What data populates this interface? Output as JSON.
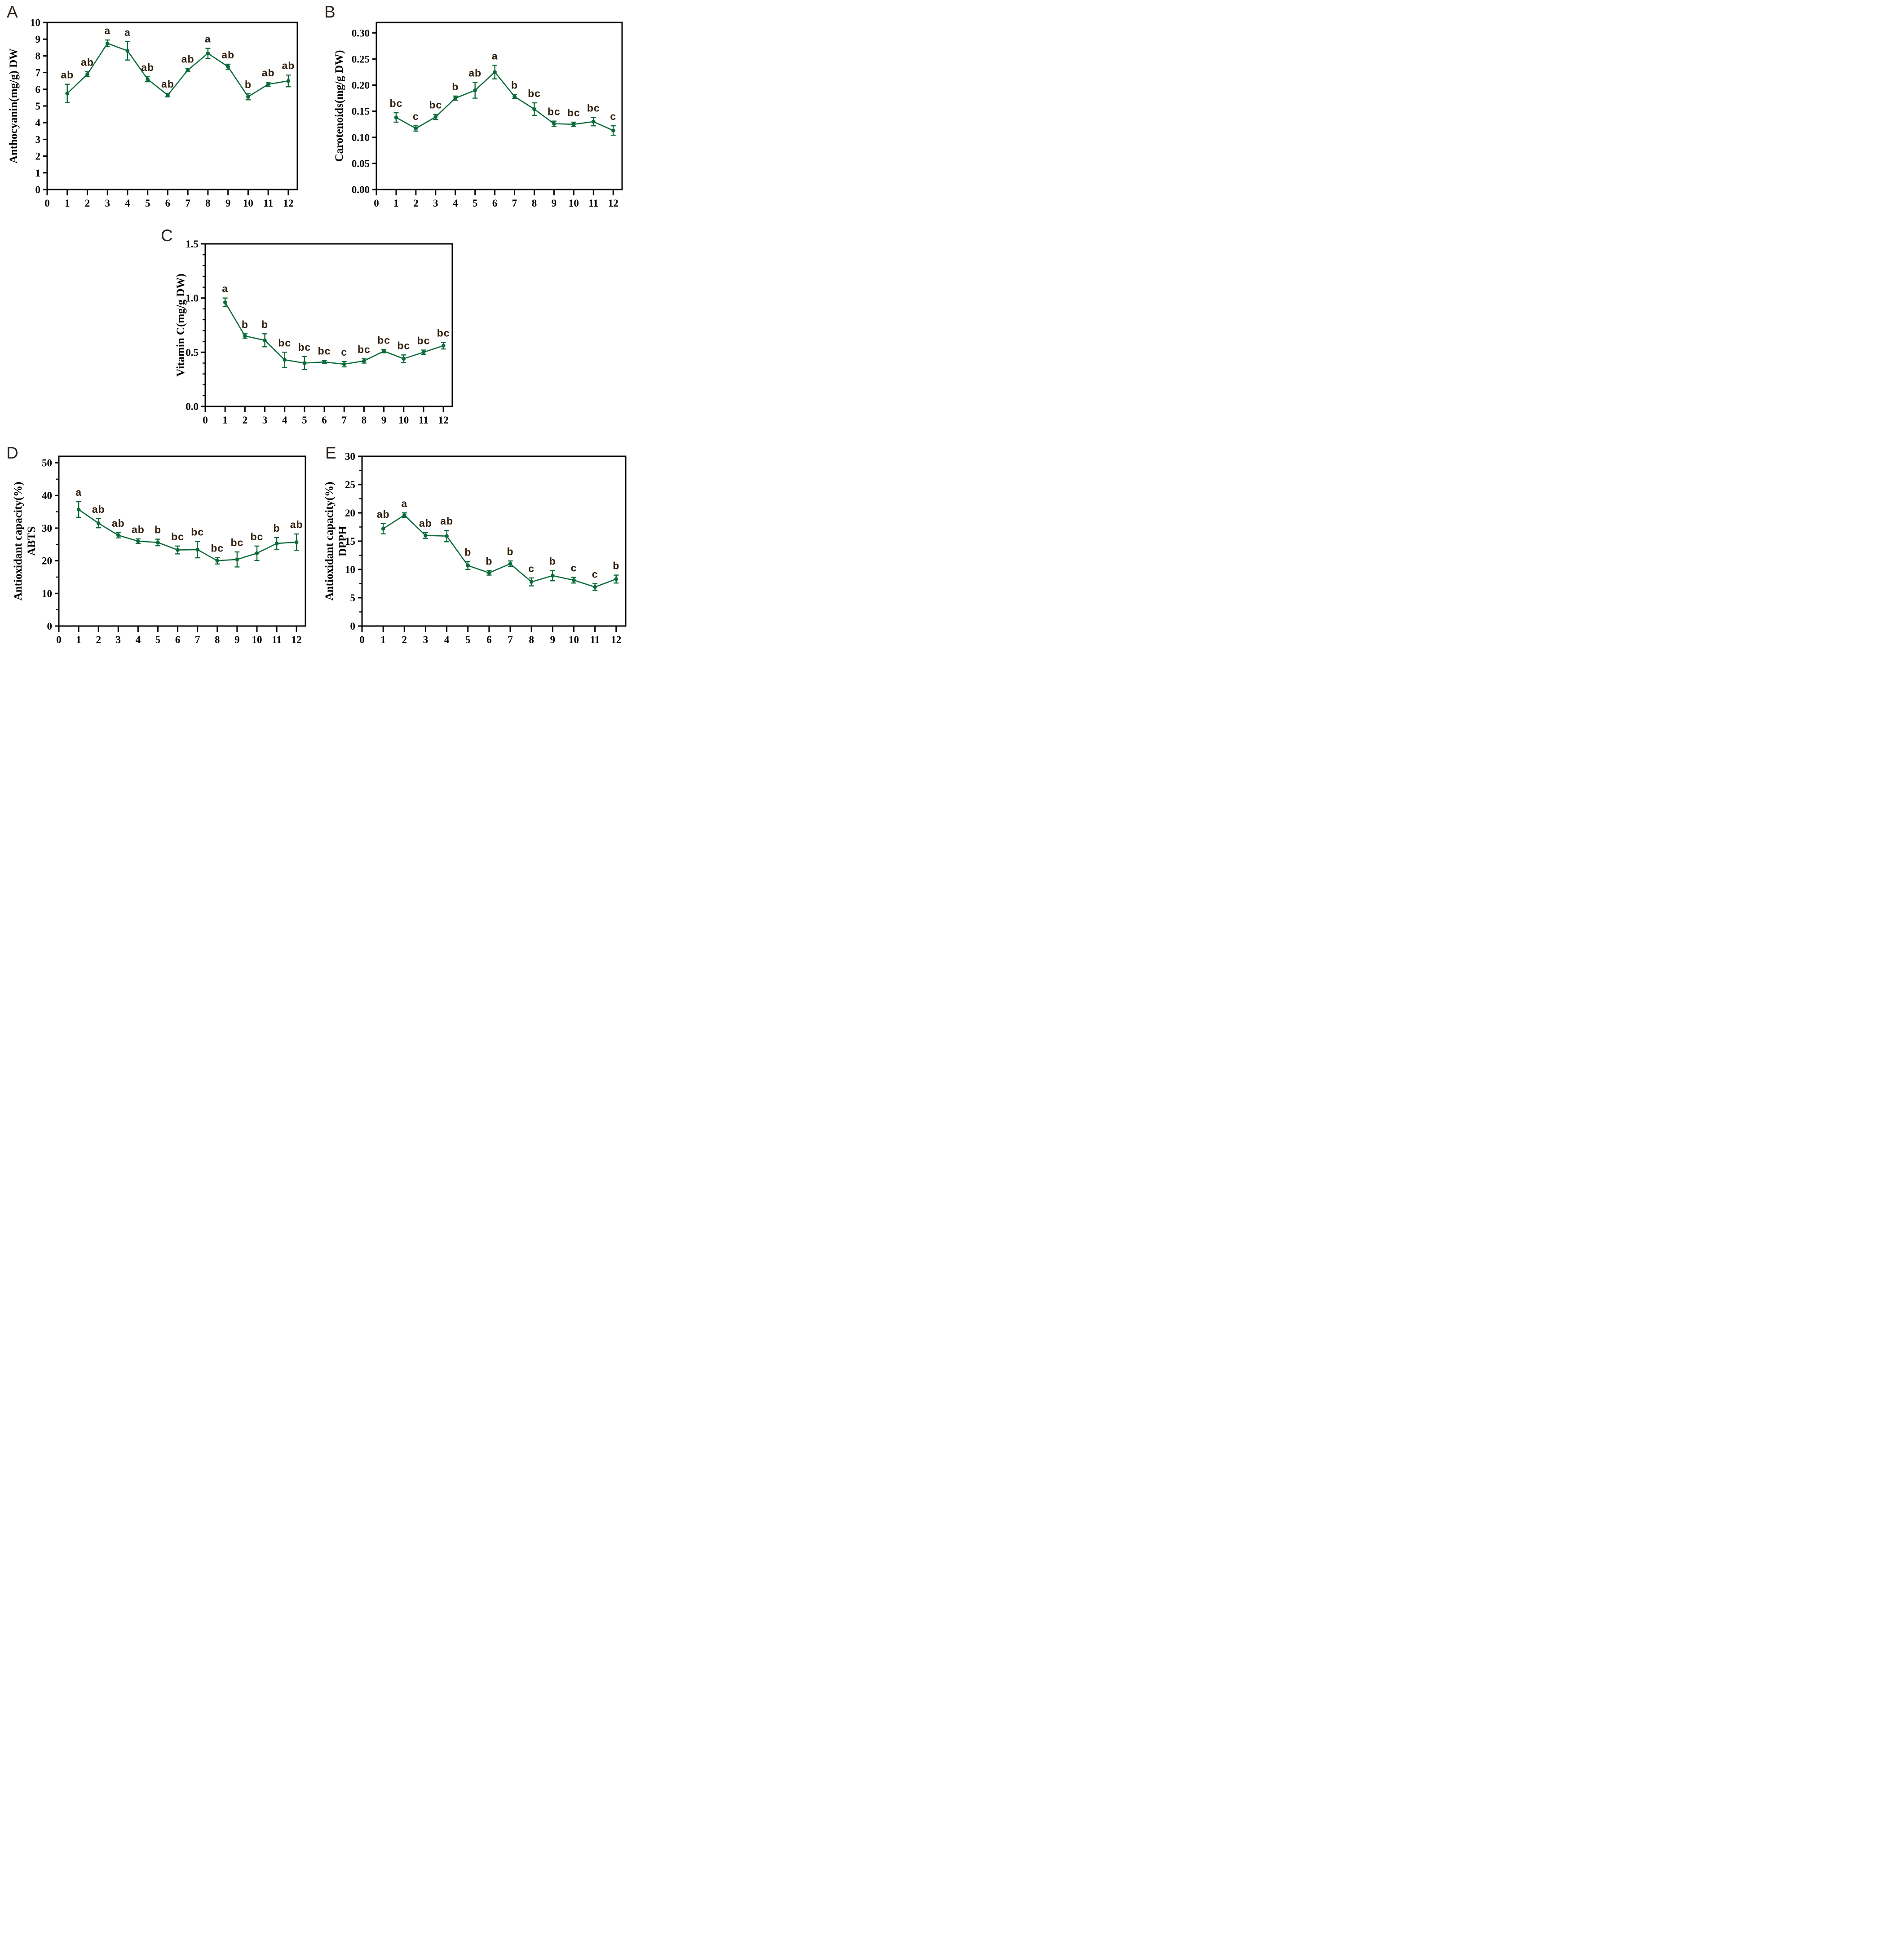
{
  "figure": {
    "background": "#ffffff",
    "description": "Five-panel line figure (A-E) of monthly measurements 1-12 with error bars and significance letters"
  },
  "colors": {
    "line": "#0b6b39",
    "marker": "#0b6b39",
    "error_bar": "#0b6b39",
    "sig_letter": "#32200f",
    "axis": "#000000",
    "panel_label": "#2b211b"
  },
  "chart_data": [
    {
      "type": "line",
      "panel_label": "A",
      "ylabel_lines": [
        "Anthocyanin(mg/g) DW"
      ],
      "xlim": [
        0,
        12.45
      ],
      "ylim": [
        0,
        10
      ],
      "ytick_step": 1,
      "ytick_decimals": 0,
      "yminor_step": null,
      "xticks": [
        0,
        1,
        2,
        3,
        4,
        5,
        6,
        7,
        8,
        9,
        10,
        11,
        12
      ],
      "x": [
        1,
        2,
        3,
        4,
        5,
        6,
        7,
        8,
        9,
        10,
        11,
        12
      ],
      "values": [
        5.75,
        6.9,
        8.75,
        8.3,
        6.6,
        5.65,
        7.15,
        8.15,
        7.35,
        5.55,
        6.3,
        6.5
      ],
      "errors": [
        0.55,
        0.15,
        0.2,
        0.55,
        0.15,
        0.1,
        0.1,
        0.3,
        0.15,
        0.18,
        0.12,
        0.35
      ],
      "sig_letters": [
        "ab",
        "ab",
        "a",
        "a",
        "ab",
        "ab",
        "ab",
        "a",
        "ab",
        "b",
        "ab",
        "ab"
      ],
      "grid": false,
      "legend": "none"
    },
    {
      "type": "line",
      "panel_label": "B",
      "ylabel_lines": [
        "Carotenoids(mg/g DW)"
      ],
      "xlim": [
        0,
        12.45
      ],
      "ylim": [
        0,
        0.32
      ],
      "ytick_max": 0.3,
      "ytick_step": 0.05,
      "ytick_decimals": 2,
      "yminor_step": null,
      "xticks": [
        0,
        1,
        2,
        3,
        4,
        5,
        6,
        7,
        8,
        9,
        10,
        11,
        12
      ],
      "x": [
        1,
        2,
        3,
        4,
        5,
        6,
        7,
        8,
        9,
        10,
        11,
        12
      ],
      "values": [
        0.138,
        0.117,
        0.139,
        0.175,
        0.19,
        0.225,
        0.178,
        0.154,
        0.126,
        0.125,
        0.13,
        0.113
      ],
      "errors": [
        0.009,
        0.005,
        0.005,
        0.004,
        0.015,
        0.013,
        0.004,
        0.012,
        0.005,
        0.004,
        0.008,
        0.009
      ],
      "sig_letters": [
        "bc",
        "c",
        "bc",
        "b",
        "ab",
        "a",
        "b",
        "bc",
        "bc",
        "bc",
        "bc",
        "c"
      ],
      "grid": false,
      "legend": "none"
    },
    {
      "type": "line",
      "panel_label": "C",
      "ylabel_lines": [
        "Vitamin C(mg/g DW)"
      ],
      "xlim": [
        0,
        12.45
      ],
      "ylim": [
        0,
        1.5
      ],
      "ytick_step": 0.5,
      "ytick_decimals": 1,
      "yminor_step": 0.1,
      "xticks": [
        0,
        1,
        2,
        3,
        4,
        5,
        6,
        7,
        8,
        9,
        10,
        11,
        12
      ],
      "x": [
        1,
        2,
        3,
        4,
        5,
        6,
        7,
        8,
        9,
        10,
        11,
        12
      ],
      "values": [
        0.96,
        0.65,
        0.61,
        0.43,
        0.4,
        0.41,
        0.39,
        0.42,
        0.51,
        0.44,
        0.5,
        0.56
      ],
      "errors": [
        0.04,
        0.02,
        0.06,
        0.07,
        0.06,
        0.015,
        0.025,
        0.02,
        0.015,
        0.035,
        0.02,
        0.03
      ],
      "sig_letters": [
        "a",
        "b",
        "b",
        "bc",
        "bc",
        "bc",
        "c",
        "bc",
        "bc",
        "bc",
        "bc",
        "bc"
      ],
      "grid": false,
      "legend": "none"
    },
    {
      "type": "line",
      "panel_label": "D",
      "ylabel_lines": [
        "Antioxidant capacity(%)",
        "ABTS"
      ],
      "xlim": [
        0,
        12.45
      ],
      "ylim": [
        0,
        52
      ],
      "ytick_max": 50,
      "ytick_step": 10,
      "ytick_decimals": 0,
      "yminor_step": 5,
      "xticks": [
        0,
        1,
        2,
        3,
        4,
        5,
        6,
        7,
        8,
        9,
        10,
        11,
        12
      ],
      "x": [
        1,
        2,
        3,
        4,
        5,
        6,
        7,
        8,
        9,
        10,
        11,
        12
      ],
      "values": [
        35.7,
        31.5,
        27.8,
        26.0,
        25.6,
        23.3,
        23.4,
        20.0,
        20.4,
        22.3,
        25.3,
        25.7
      ],
      "errors": [
        2.4,
        1.4,
        0.8,
        0.7,
        1.0,
        1.2,
        2.5,
        1.0,
        2.3,
        2.2,
        1.8,
        2.5
      ],
      "sig_letters": [
        "a",
        "ab",
        "ab",
        "ab",
        "b",
        "bc",
        "bc",
        "bc",
        "bc",
        "bc",
        "b",
        "ab"
      ],
      "grid": false,
      "legend": "none"
    },
    {
      "type": "line",
      "panel_label": "E",
      "ylabel_lines": [
        "Antioxidant capacity(%)",
        "DPPH"
      ],
      "xlim": [
        0,
        12.45
      ],
      "ylim": [
        0,
        30
      ],
      "ytick_step": 5,
      "ytick_decimals": 0,
      "yminor_step": 2.5,
      "xticks": [
        0,
        1,
        2,
        3,
        4,
        5,
        6,
        7,
        8,
        9,
        10,
        11,
        12
      ],
      "x": [
        1,
        2,
        3,
        4,
        5,
        6,
        7,
        8,
        9,
        10,
        11,
        12
      ],
      "values": [
        17.2,
        19.6,
        16.0,
        15.9,
        10.7,
        9.4,
        11.0,
        7.8,
        8.9,
        8.1,
        6.9,
        8.3
      ],
      "errors": [
        0.9,
        0.4,
        0.5,
        1.0,
        0.7,
        0.4,
        0.5,
        0.7,
        0.9,
        0.5,
        0.6,
        0.7
      ],
      "sig_letters": [
        "ab",
        "a",
        "ab",
        "ab",
        "b",
        "b",
        "b",
        "c",
        "b",
        "c",
        "c",
        "b"
      ],
      "grid": false,
      "legend": "none"
    }
  ]
}
